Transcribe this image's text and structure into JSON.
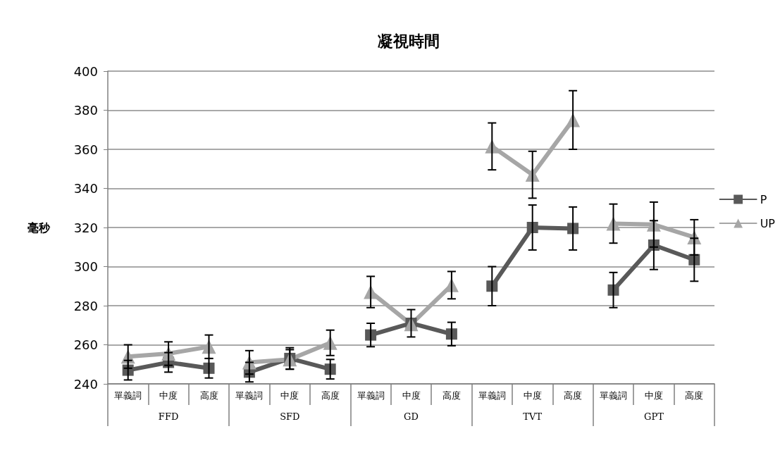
{
  "chart_data": {
    "type": "line",
    "title": "凝視時間",
    "ylabel": "毫秒",
    "categories": [
      "單義詞",
      "中度",
      "高度",
      "單義詞",
      "中度",
      "高度",
      "單義詞",
      "中度",
      "高度",
      "單義詞",
      "中度",
      "高度",
      "單義詞",
      "中度",
      "高度"
    ],
    "annotations": [
      "FFD",
      "SFD",
      "GD",
      "TVT",
      "GPT"
    ],
    "series": [
      {
        "name": "P",
        "color": "#595959",
        "marker": "square",
        "values": [
          247,
          251,
          248,
          246,
          253,
          247.5,
          265,
          271,
          265.5,
          290,
          320,
          319.5,
          288,
          311,
          303.5
        ],
        "errors": [
          5,
          5,
          5,
          5,
          5.5,
          5,
          6,
          7,
          6,
          10,
          11.5,
          11,
          9,
          12.5,
          11
        ]
      },
      {
        "name": "UP",
        "color": "#a6a6a6",
        "marker": "triangle",
        "values": [
          254,
          255.5,
          259,
          251,
          252.5,
          261,
          287,
          270.5,
          290.5,
          361.5,
          347,
          375,
          322,
          321.5,
          315
        ],
        "errors": [
          6,
          6,
          6,
          6,
          5,
          6.5,
          8,
          null,
          7,
          12,
          12,
          15,
          10,
          11.5,
          9
        ]
      }
    ],
    "ylim": [
      240,
      400
    ],
    "yticks": [
      240,
      260,
      280,
      300,
      320,
      340,
      360,
      380,
      400
    ],
    "grid": "y",
    "legend": "right",
    "line_style": "solid"
  }
}
